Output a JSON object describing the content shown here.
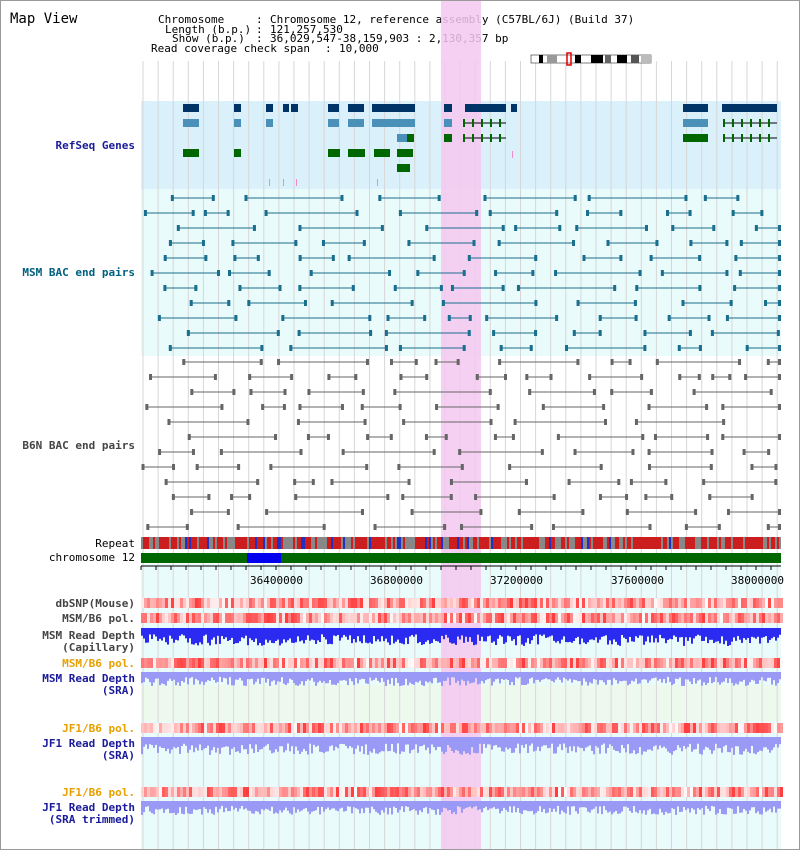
{
  "view_title": "Map View",
  "info": {
    "chromosome_label": "Chromosome",
    "chromosome_value": "Chromosome 12, reference assembly (C57BL/6J) (Build 37)",
    "length_label": "Length (b.p.)",
    "length_value": "121,257,530",
    "show_label": "Show (b.p.)",
    "show_value": "36,029,547-38,159,903 : 2,130,357 bp",
    "span_label": "Read coverage check span",
    "span_value": "10,000"
  },
  "tracks": {
    "refseq": "RefSeq Genes",
    "msm_bac": "MSM BAC end pairs",
    "b6n_bac": "B6N BAC end pairs",
    "repeat": "Repeat",
    "chromosome": "chromosome 12",
    "dbsnp": "dbSNP(Mouse)",
    "msm_b6_pol_1": "MSM/B6 pol.",
    "msm_read_depth_cap_1": "MSM Read Depth",
    "msm_read_depth_cap_2": "(Capillary)",
    "msm_b6_pol_2": "MSM/B6 pol.",
    "msm_read_depth_sra_1": "MSM Read Depth",
    "msm_read_depth_sra_2": "(SRA)",
    "jf1_b6_pol_1": "JF1/B6 pol.",
    "jf1_read_depth_sra_1": "JF1 Read Depth",
    "jf1_read_depth_sra_2": "(SRA)",
    "jf1_b6_pol_2": "JF1/B6 pol.",
    "jf1_read_depth_trim_1": "JF1 Read Depth",
    "jf1_read_depth_trim_2": "(SRA trimmed)"
  },
  "axis": {
    "ticks": [
      "36400000",
      "36800000",
      "37200000",
      "37600000",
      "38000000"
    ]
  },
  "colors": {
    "highlight": "#f5c8f0",
    "refseq_bg": "#daf0fb",
    "bac_bg": "#e9fbfb",
    "gene_navy": "#003366",
    "gene_steel": "#4a90b8",
    "gene_green": "#006600",
    "bac_teal": "#1a6e8e",
    "bac_gray": "#666666",
    "chrom_green": "#006600",
    "chrom_blue": "#0000ee",
    "depth_blue": "#2a2af0",
    "depth_light": "#9a9af6"
  }
}
